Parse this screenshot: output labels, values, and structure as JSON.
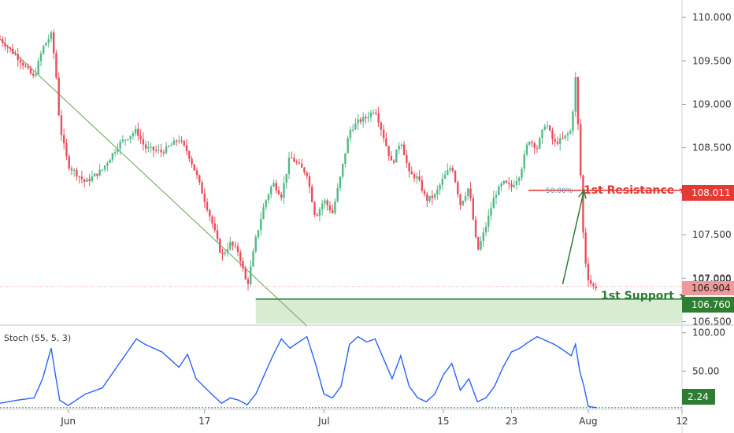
{
  "chart_data": {
    "type": "candlestick",
    "title": "",
    "price_axis": {
      "range": [
        106.46,
        110.2
      ],
      "ticks": [
        "110.000",
        "109.500",
        "109.000",
        "108.500",
        "108.000",
        "107.500",
        "107.000",
        "106.500"
      ]
    },
    "time_axis": {
      "range_days": [
        0,
        80
      ],
      "labels": [
        {
          "text": "Jun",
          "day": 8
        },
        {
          "text": "17",
          "day": 24
        },
        {
          "text": "Jul",
          "day": 38
        },
        {
          "text": "15",
          "day": 52
        },
        {
          "text": "23",
          "day": 60
        },
        {
          "text": "Aug",
          "day": 69
        },
        {
          "text": "12",
          "day": 80
        }
      ]
    },
    "price_path_days": [
      0,
      2,
      4,
      5,
      6,
      6.5,
      7,
      8,
      10,
      12,
      14,
      16,
      17,
      19,
      21,
      22,
      23,
      25,
      26,
      27,
      28,
      29,
      30,
      31,
      32,
      33,
      34,
      36,
      37,
      38,
      39,
      40,
      41,
      42,
      43,
      44,
      46,
      47,
      48,
      49,
      50,
      51,
      52,
      53,
      54,
      55,
      56,
      57,
      58,
      59,
      60,
      61,
      62,
      63,
      64,
      65,
      66,
      67,
      67.5,
      68,
      68.5,
      69,
      69.5,
      70
    ],
    "price_path_values": [
      109.75,
      109.55,
      109.3,
      109.65,
      109.8,
      109.45,
      108.75,
      108.3,
      108.1,
      108.25,
      108.55,
      108.7,
      108.5,
      108.45,
      108.6,
      108.45,
      108.2,
      107.6,
      107.25,
      107.4,
      107.3,
      106.9,
      107.45,
      107.85,
      108.1,
      107.95,
      108.4,
      108.2,
      107.7,
      107.9,
      107.75,
      108.2,
      108.7,
      108.8,
      108.85,
      108.95,
      108.3,
      108.6,
      108.2,
      108.15,
      107.9,
      107.95,
      108.15,
      108.3,
      107.85,
      108.05,
      107.3,
      107.6,
      107.95,
      108.1,
      108.05,
      108.2,
      108.6,
      108.5,
      108.8,
      108.55,
      108.6,
      108.7,
      109.3,
      108.4,
      107.3,
      107.0,
      106.9,
      106.904
    ],
    "stoch_path_days": [
      0,
      2,
      4,
      5,
      6,
      6.5,
      7,
      8,
      10,
      12,
      14,
      16,
      17,
      19,
      21,
      22,
      23,
      25,
      26,
      27,
      28,
      29,
      30,
      31,
      32,
      33,
      34,
      36,
      37,
      38,
      39,
      40,
      41,
      42,
      43,
      44,
      46,
      47,
      48,
      49,
      50,
      51,
      52,
      53,
      54,
      55,
      56,
      57,
      58,
      59,
      60,
      61,
      62,
      63,
      64,
      65,
      66,
      67,
      67.5,
      68,
      68.5,
      69,
      69.5,
      70
    ],
    "stoch_path_values": [
      8,
      12,
      15,
      40,
      80,
      45,
      12,
      5,
      20,
      28,
      60,
      92,
      85,
      75,
      55,
      72,
      40,
      18,
      8,
      15,
      12,
      6,
      20,
      45,
      70,
      92,
      80,
      95,
      60,
      20,
      15,
      30,
      85,
      95,
      88,
      92,
      40,
      70,
      30,
      15,
      10,
      20,
      45,
      60,
      25,
      40,
      10,
      15,
      30,
      55,
      75,
      80,
      88,
      95,
      90,
      85,
      78,
      70,
      85,
      50,
      30,
      4,
      3,
      2.24
    ],
    "resistance": {
      "label": "1st Resistance ★",
      "value": 108.011,
      "value_label": "108.011",
      "fib_label": "50.00%",
      "start_day": 62
    },
    "support": {
      "label": "1st Support ★",
      "value": 106.76,
      "value_label": "106.760",
      "start_day": 30
    },
    "current_price": {
      "value": 106.904,
      "label": "106.904"
    },
    "partial_tick_label": "107.000",
    "trendline": {
      "start": {
        "day": 0,
        "value": 109.75
      },
      "end": {
        "day": 36,
        "value": 106.45
      }
    },
    "projection_arrow": {
      "from": {
        "day": 66,
        "value": 106.93
      },
      "to": {
        "day": 68.5,
        "value": 108.011
      }
    },
    "stochastic": {
      "label": "Stoch (55, 5, 3)",
      "range": [
        0,
        110
      ],
      "ticks": [
        "100.00",
        "50.00"
      ],
      "last_value": 2.24,
      "last_label": "2.24"
    },
    "colors": {
      "up": "#53b987",
      "down": "#eb4d5c",
      "resistance": "#e53935",
      "support": "#2e7d32",
      "stoch": "#2962ff",
      "trendline": "#7cb26a",
      "support_zone": "#d8ebd3"
    }
  }
}
